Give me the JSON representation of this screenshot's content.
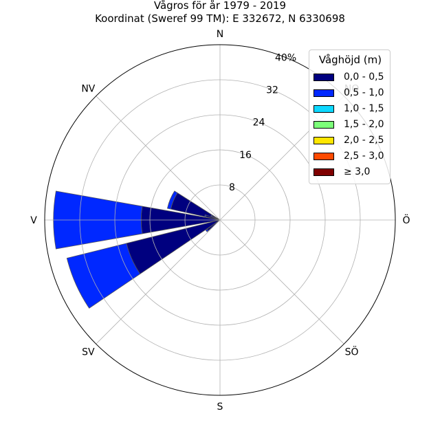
{
  "title": [
    "Vågros för år 1979 - 2019",
    "Koordinat (Sweref 99 TM): E 332672, N 6330698"
  ],
  "chart_data": {
    "type": "polar-stacked-bar",
    "title": "Vågros för år 1979 - 2019",
    "subtitle": "Koordinat (Sweref 99 TM): E 332672, N 6330698",
    "direction_labels": [
      "N",
      "NO",
      "Ö",
      "SÖ",
      "S",
      "SV",
      "V",
      "NV"
    ],
    "radial_ticks": [
      "8",
      "16",
      "24",
      "32",
      "40%"
    ],
    "radial_range": [
      0,
      40
    ],
    "legend_title": "Våghöjd (m)",
    "legend_position": "top-right",
    "grid": true,
    "sectors": [
      {
        "direction": 292.5,
        "width": 20,
        "values": [
          11.5,
          0.8
        ]
      },
      {
        "direction": 286,
        "width": 7,
        "values": [
          3.3,
          0.3
        ]
      },
      {
        "direction": 276,
        "width": 6,
        "values": [
          1.8,
          0.2
        ]
      },
      {
        "direction": 270,
        "width": 20,
        "values": [
          18.0,
          20.0
        ]
      },
      {
        "direction": 246,
        "width": 20,
        "values": [
          22.0,
          14.0
        ]
      },
      {
        "direction": 231,
        "width": 7,
        "values": [
          3.6,
          0.4
        ]
      },
      {
        "direction": 297,
        "width": 7,
        "values": [
          2.0,
          0.3
        ]
      }
    ],
    "series": [
      {
        "name": "0,0 - 0,5",
        "color": "#00007f"
      },
      {
        "name": "0,5 - 1,0",
        "color": "#0028ff"
      },
      {
        "name": "1,0 - 1,5",
        "color": "#0dd8ff"
      },
      {
        "name": "1,5 - 2,0",
        "color": "#7cff79"
      },
      {
        "name": "2,0 - 2,5",
        "color": "#ffe600"
      },
      {
        "name": "2,5 - 3,0",
        "color": "#ff4a00"
      },
      {
        "name": "≥ 3,0",
        "color": "#7f0000"
      }
    ]
  }
}
